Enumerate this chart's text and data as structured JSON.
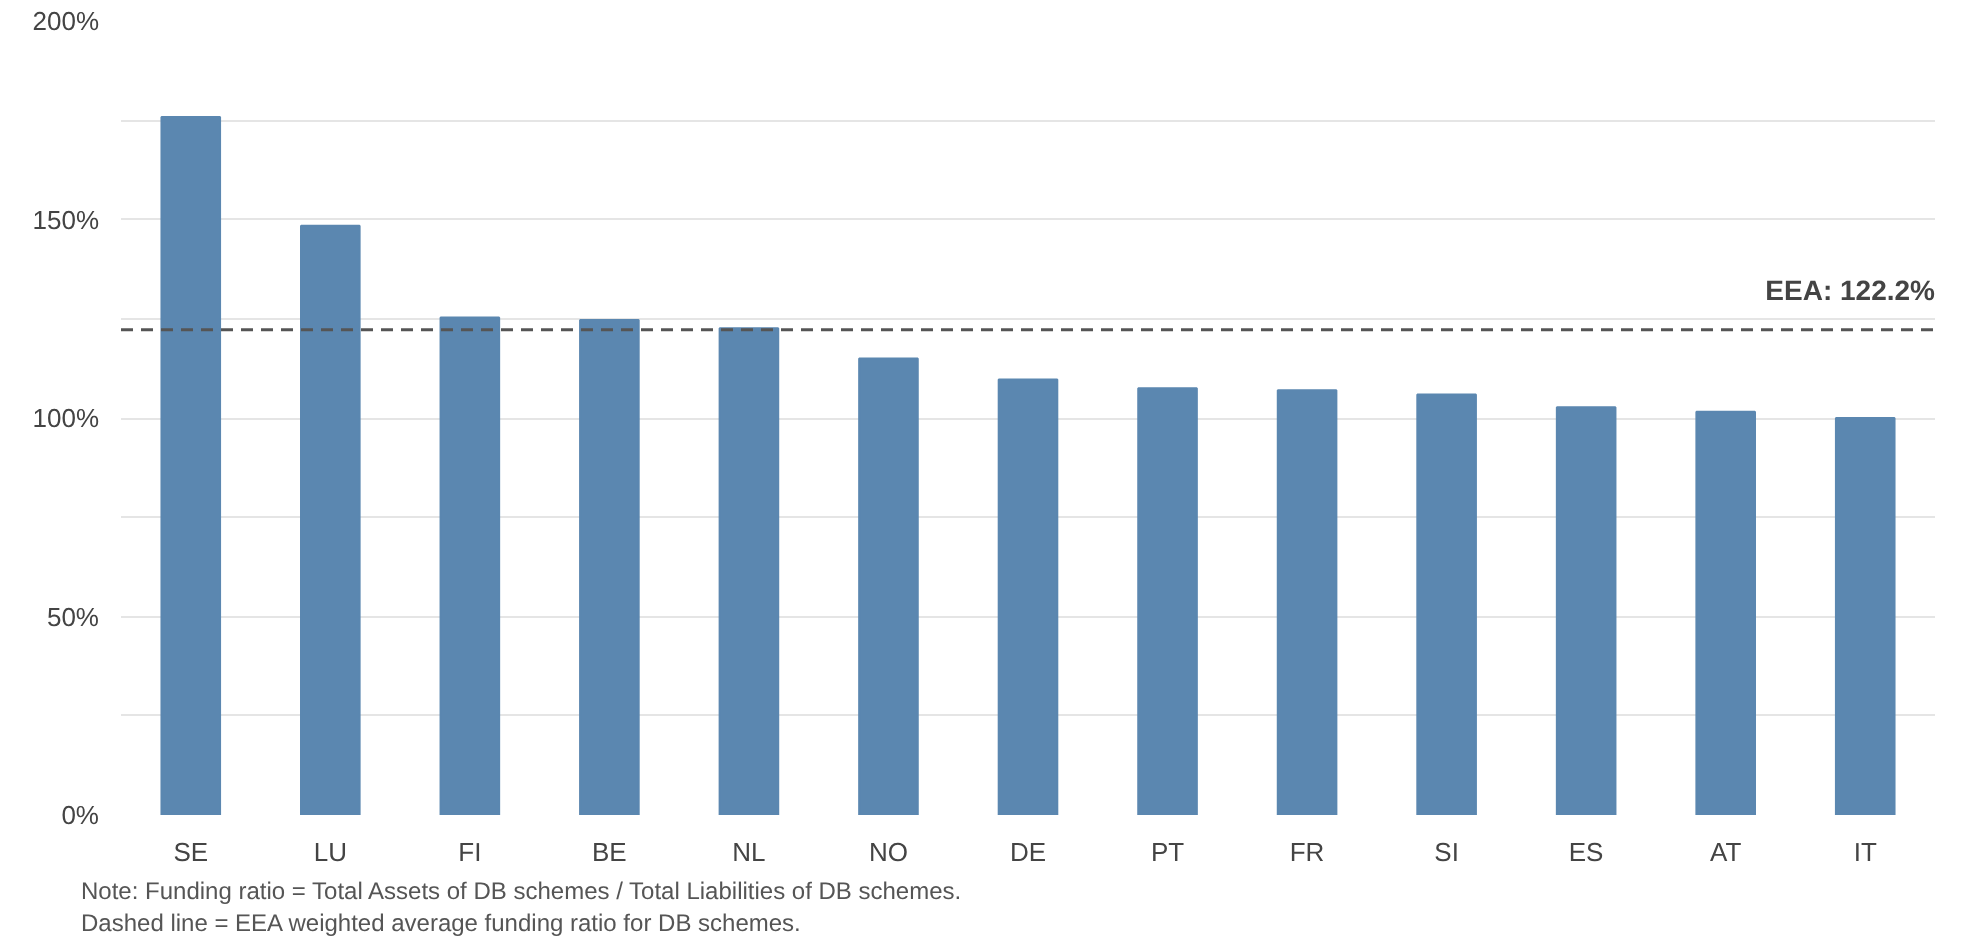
{
  "chart_data": {
    "type": "bar",
    "categories": [
      "SE",
      "LU",
      "FI",
      "BE",
      "NL",
      "NO",
      "DE",
      "PT",
      "FR",
      "SI",
      "ES",
      "AT",
      "IT"
    ],
    "values": [
      175.8,
      148.4,
      125.3,
      124.7,
      122.6,
      115,
      109.7,
      107.5,
      107,
      105.9,
      102.7,
      101.6,
      100
    ],
    "color": "#5b87b0",
    "ylim": [
      0,
      200
    ],
    "yticks": [
      {
        "value": 0,
        "label": "0%"
      },
      {
        "value": 25,
        "label": null
      },
      {
        "value": 50,
        "label": "50%"
      },
      {
        "value": 75,
        "label": null
      },
      {
        "value": 100,
        "label": "100%"
      },
      {
        "value": 125,
        "label": null
      },
      {
        "value": 150,
        "label": "150%"
      },
      {
        "value": 175,
        "label": null
      },
      {
        "value": 200,
        "label": "200%"
      }
    ],
    "grid": "y",
    "ref_lines": [
      {
        "axis": "y",
        "value": 122.2,
        "label": "EEA: 122.2%",
        "color": "#555555",
        "line_style": "dashed"
      }
    ],
    "annotations": [
      "Note: Funding ratio = Total Assets of DB schemes / Total Liabilities of DB schemes.",
      "Dashed line = EEA weighted average funding ratio for DB schemes."
    ]
  }
}
